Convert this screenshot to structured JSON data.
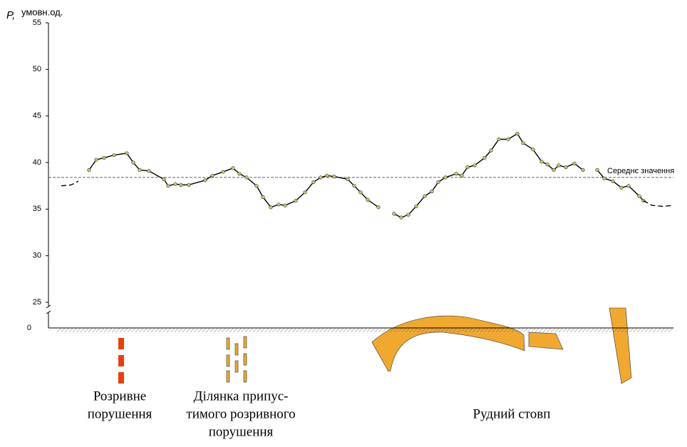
{
  "chart_data": {
    "type": "line",
    "y_label": "P,",
    "y_unit": "умовн.од.",
    "ylim": [
      25,
      55
    ],
    "yticks": [
      25,
      30,
      35,
      40,
      45,
      50,
      55
    ],
    "y_base_label": 0,
    "xlim": [
      0,
      860
    ],
    "mean": {
      "value": 38.4,
      "label": "Середнє значення"
    },
    "series": [
      {
        "style": "dashed",
        "color": "#000000",
        "x": [
          0,
          14,
          24
        ],
        "values": [
          37.5,
          37.6,
          38.0
        ]
      },
      {
        "style": "solid",
        "color": "#000000",
        "marker_color": "#c9c46a",
        "x": [
          39,
          49,
          60,
          74,
          92,
          101,
          110,
          123,
          144,
          150,
          160,
          168,
          179,
          202,
          212,
          227,
          241,
          250,
          260,
          274,
          283,
          294,
          305,
          314,
          329,
          342,
          354,
          364,
          373,
          383,
          402,
          411,
          420,
          430,
          445,
          456,
          467,
          477,
          487,
          498,
          510,
          520,
          529,
          539,
          554,
          562,
          570,
          580,
          594,
          603,
          614,
          627,
          640,
          648,
          662,
          674,
          682,
          691,
          698,
          708,
          720,
          732,
          742,
          752,
          762,
          774,
          786,
          796,
          811,
          817
        ],
        "values": [
          39.2,
          40.3,
          40.5,
          40.8,
          41.0,
          40.0,
          39.2,
          39.1,
          38.2,
          37.5,
          37.7,
          37.6,
          37.6,
          38.1,
          38.6,
          39.0,
          39.4,
          38.8,
          38.4,
          37.5,
          36.3,
          35.2,
          35.5,
          35.4,
          35.9,
          36.8,
          37.9,
          38.4,
          38.6,
          38.5,
          38.2,
          37.5,
          36.8,
          36.0,
          35.2,
          null,
          34.5,
          34.1,
          34.4,
          35.3,
          36.4,
          36.9,
          37.9,
          38.4,
          38.8,
          38.6,
          39.5,
          39.7,
          40.5,
          41.3,
          42.5,
          42.5,
          43.1,
          42.1,
          41.4,
          40.1,
          39.8,
          39.2,
          39.7,
          39.5,
          39.9,
          39.2,
          null,
          39.2,
          38.3,
          38.0,
          37.3,
          37.5,
          36.4,
          35.9
        ]
      },
      {
        "style": "dashed",
        "color": "#000000",
        "x": [
          817,
          829,
          844,
          859
        ],
        "values": [
          35.9,
          35.4,
          35.3,
          35.4
        ]
      }
    ],
    "annotations": [
      {
        "lines": [
          "Розривне",
          "порушення"
        ]
      },
      {
        "lines": [
          "Ділянка припус-",
          "тимого розривного",
          "порушення"
        ]
      },
      {
        "lines": [
          "Рудний стовп"
        ]
      }
    ]
  }
}
